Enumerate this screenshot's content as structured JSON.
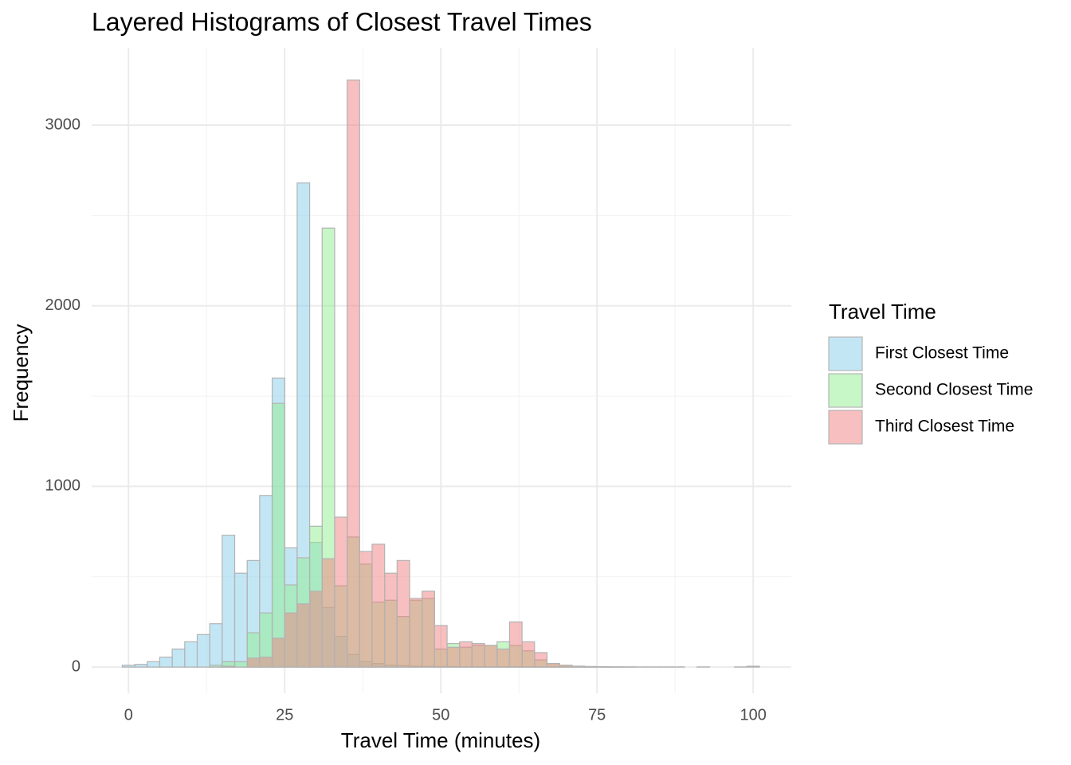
{
  "chart_data": {
    "type": "histogram",
    "title": "Layered Histograms of Closest Travel Times",
    "x_label": "Travel Time (minutes)",
    "y_label": "Frequency",
    "legend_title": "Travel Time",
    "legend_position": "right",
    "grid": true,
    "bins": [
      -1,
      1,
      3,
      5,
      7,
      9,
      11,
      13,
      15,
      17,
      19,
      21,
      23,
      25,
      27,
      29,
      31,
      33,
      35,
      37,
      39,
      41,
      43,
      45,
      47,
      49,
      51,
      53,
      55,
      57,
      59,
      61,
      63,
      65,
      67,
      69,
      71,
      73,
      75,
      77,
      79,
      81,
      83,
      85,
      87,
      89,
      91,
      93,
      95,
      97,
      99,
      101
    ],
    "series": [
      {
        "name": "First Closest Time",
        "color": "#87CEEB",
        "values": [
          10,
          15,
          30,
          55,
          100,
          140,
          180,
          240,
          730,
          520,
          590,
          950,
          1600,
          660,
          2680,
          690,
          330,
          170,
          70,
          30,
          20,
          10,
          8,
          5,
          4,
          3,
          3,
          2,
          2,
          2,
          2,
          2,
          2,
          2,
          2,
          2,
          2,
          1,
          1,
          1,
          1,
          1,
          1,
          1,
          1,
          0,
          1,
          0,
          0,
          1,
          5
        ]
      },
      {
        "name": "Second Closest Time",
        "color": "#90EE90",
        "values": [
          0,
          0,
          0,
          0,
          0,
          0,
          0,
          10,
          30,
          30,
          190,
          300,
          1460,
          455,
          605,
          780,
          2430,
          450,
          720,
          570,
          360,
          370,
          280,
          370,
          380,
          100,
          130,
          110,
          120,
          120,
          140,
          120,
          90,
          40,
          20,
          10,
          5,
          3,
          2,
          1,
          1,
          0,
          0,
          0,
          0,
          0,
          0,
          0,
          0,
          0,
          0
        ]
      },
      {
        "name": "Third Closest Time",
        "color": "#F08080",
        "values": [
          0,
          0,
          0,
          0,
          0,
          0,
          0,
          0,
          5,
          0,
          50,
          55,
          160,
          300,
          350,
          420,
          600,
          830,
          3250,
          640,
          680,
          520,
          590,
          380,
          420,
          230,
          110,
          140,
          130,
          120,
          100,
          250,
          140,
          80,
          20,
          10,
          5,
          3,
          2,
          1,
          0,
          0,
          0,
          0,
          0,
          0,
          0,
          0,
          0,
          0,
          0
        ]
      }
    ],
    "xlim": [
      -5.9,
      106.1
    ],
    "ylim": [
      -145,
      3428
    ],
    "xticks": [
      0,
      25,
      50,
      75,
      100
    ],
    "yticks": [
      0,
      1000,
      2000,
      3000
    ],
    "x_minor_ticks": [
      12.5,
      37.5,
      62.5,
      87.5
    ],
    "y_minor_ticks": [
      500,
      1500,
      2500
    ]
  }
}
